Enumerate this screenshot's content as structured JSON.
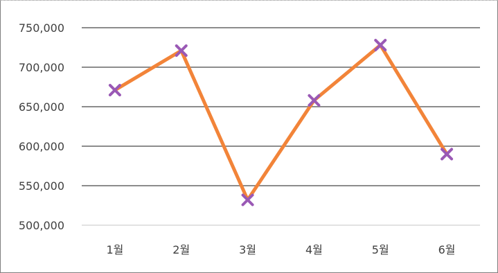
{
  "chart_data": {
    "type": "line",
    "categories": [
      "1월",
      "2월",
      "3월",
      "4월",
      "5월",
      "6월"
    ],
    "series": [
      {
        "values": [
          671000,
          721000,
          532000,
          658000,
          728000,
          590000
        ]
      }
    ],
    "y_ticks": [
      "500,000",
      "550,000",
      "600,000",
      "650,000",
      "700,000",
      "750,000"
    ],
    "ylim": [
      500000,
      750000
    ],
    "title": "",
    "xlabel": "",
    "ylabel": "",
    "grid": true,
    "legend": "none",
    "colors": {
      "line": "#f28439",
      "marker": "#9a59b5",
      "grid": "#8c8c8c",
      "grid_base": "#d9d9d9"
    },
    "marker": "x"
  }
}
